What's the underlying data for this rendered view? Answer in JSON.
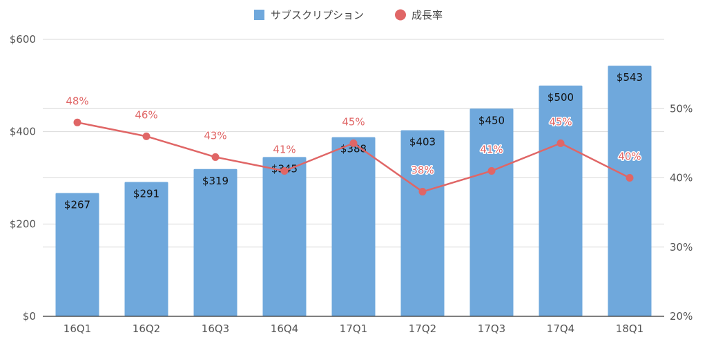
{
  "chart_data": {
    "type": "bar",
    "categories": [
      "16Q1",
      "16Q2",
      "16Q3",
      "16Q4",
      "17Q1",
      "17Q2",
      "17Q3",
      "17Q4",
      "18Q1"
    ],
    "series": [
      {
        "name": "サブスクリプション",
        "type": "bar",
        "axis": "left",
        "values": [
          267,
          291,
          319,
          345,
          388,
          403,
          450,
          500,
          543
        ],
        "labels": [
          "$267",
          "$291",
          "$319",
          "$345",
          "$388",
          "$403",
          "$450",
          "$500",
          "$543"
        ],
        "color": "#6fa8dc"
      },
      {
        "name": "成長率",
        "type": "line",
        "axis": "right",
        "values": [
          48,
          46,
          43,
          41,
          45,
          38,
          41,
          45,
          40
        ],
        "labels": [
          "48%",
          "46%",
          "43%",
          "41%",
          "45%",
          "38%",
          "41%",
          "45%",
          "40%"
        ],
        "color": "#e06666"
      }
    ],
    "y_left": {
      "min": 0,
      "max": 600,
      "ticks": [
        0,
        200,
        400,
        600
      ],
      "tick_labels": [
        "$0",
        "$200",
        "$400",
        "$600"
      ]
    },
    "y_right": {
      "min": 20,
      "max": 60,
      "ticks": [
        20,
        30,
        40,
        50
      ],
      "tick_labels": [
        "20%",
        "30%",
        "40%",
        "50%"
      ]
    },
    "legend": "top-center",
    "grid": true,
    "title": "",
    "xlabel": "",
    "ylabel": ""
  }
}
